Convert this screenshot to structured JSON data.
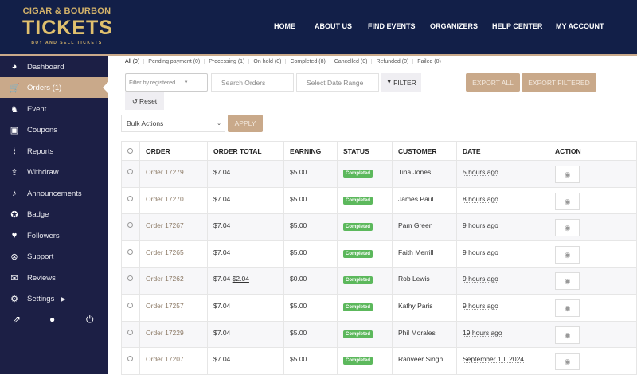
{
  "header": {
    "logo": {
      "line1": "CIGAR & BOURBON",
      "line2": "TICKETS",
      "line3": "BUY AND SELL TICKETS"
    },
    "nav": [
      "HOME",
      "ABOUT US",
      "FIND EVENTS",
      "ORGANIZERS",
      "HELP CENTER",
      "MY ACCOUNT"
    ]
  },
  "sidebar": {
    "items": [
      {
        "label": "Dashboard",
        "icon": "dashboard-icon"
      },
      {
        "label": "Orders (1)",
        "icon": "cart-icon",
        "active": true
      },
      {
        "label": "Event",
        "icon": "event-icon"
      },
      {
        "label": "Coupons",
        "icon": "gift-icon"
      },
      {
        "label": "Reports",
        "icon": "chart-icon"
      },
      {
        "label": "Withdraw",
        "icon": "upload-icon"
      },
      {
        "label": "Announcements",
        "icon": "bell-icon"
      },
      {
        "label": "Badge",
        "icon": "badge-icon"
      },
      {
        "label": "Followers",
        "icon": "heart-icon"
      },
      {
        "label": "Support",
        "icon": "lifebuoy-icon"
      },
      {
        "label": "Reviews",
        "icon": "comments-icon"
      },
      {
        "label": "Settings",
        "icon": "gear-icon"
      }
    ]
  },
  "filters": {
    "tabs": [
      "All (9)",
      "Pending payment (0)",
      "Processing (1)",
      "On hold (0)",
      "Completed (8)",
      "Cancelled (0)",
      "Refunded (0)",
      "Failed (0)"
    ],
    "customer_placeholder": "Filter by registered ...",
    "search_placeholder": "Search Orders",
    "date_placeholder": "Select Date Range",
    "filter_label": "FILTER",
    "export_all": "EXPORT ALL",
    "export_filtered": "EXPORT FILTERED",
    "reset": "Reset",
    "bulk_actions": "Bulk Actions",
    "apply": "APPLY"
  },
  "table": {
    "headers": [
      "ORDER",
      "ORDER TOTAL",
      "EARNING",
      "STATUS",
      "CUSTOMER",
      "DATE",
      "ACTION"
    ],
    "rows": [
      {
        "order": "Order 17279",
        "total": "$7.04",
        "old_total": "",
        "earning": "$5.00",
        "status": "Completed",
        "customer": "Tina Jones",
        "date": "5 hours ago"
      },
      {
        "order": "Order 17270",
        "total": "$7.04",
        "old_total": "",
        "earning": "$5.00",
        "status": "Completed",
        "customer": "James Paul",
        "date": "8 hours ago"
      },
      {
        "order": "Order 17267",
        "total": "$7.04",
        "old_total": "",
        "earning": "$5.00",
        "status": "Completed",
        "customer": "Pam Green",
        "date": "9 hours ago"
      },
      {
        "order": "Order 17265",
        "total": "$7.04",
        "old_total": "",
        "earning": "$5.00",
        "status": "Completed",
        "customer": "Faith Merrill",
        "date": "9 hours ago"
      },
      {
        "order": "Order 17262",
        "total": "$2.04",
        "old_total": "$7.04",
        "earning": "$0.00",
        "status": "Completed",
        "customer": "Rob Lewis",
        "date": "9 hours ago"
      },
      {
        "order": "Order 17257",
        "total": "$7.04",
        "old_total": "",
        "earning": "$5.00",
        "status": "Completed",
        "customer": "Kathy Paris",
        "date": "9 hours ago"
      },
      {
        "order": "Order 17229",
        "total": "$7.04",
        "old_total": "",
        "earning": "$5.00",
        "status": "Completed",
        "customer": "Phil Morales",
        "date": "19 hours ago"
      },
      {
        "order": "Order 17207",
        "total": "$7.04",
        "old_total": "",
        "earning": "$5.00",
        "status": "Completed",
        "customer": "Ranveer Singh",
        "date": "September 10, 2024"
      }
    ]
  },
  "colors": {
    "navy": "#121f48",
    "sidebar": "#1c1f45",
    "accent": "#c9a98a",
    "status_completed": "#5cb85c"
  }
}
